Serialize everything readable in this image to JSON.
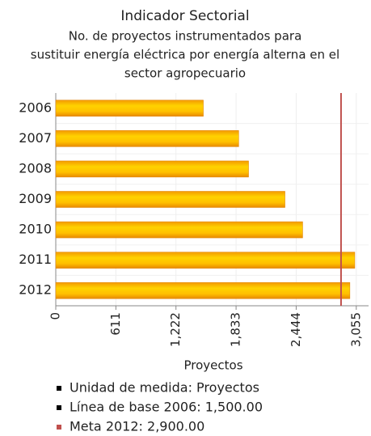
{
  "chart_data": {
    "type": "barh",
    "title": "Indicador Sectorial",
    "subtitle": [
      "No. de proyectos instrumentados para",
      "sustituir energía eléctrica por energía alterna en el",
      "sector agropecuario"
    ],
    "categories": [
      "2006",
      "2007",
      "2008",
      "2009",
      "2010",
      "2011",
      "2012"
    ],
    "values": [
      1500,
      1860,
      1960,
      2330,
      2510,
      3040,
      2990
    ],
    "color": "#ffb400",
    "xlabel": "Proyectos",
    "xlim": [
      0,
      3180
    ],
    "xticks": [
      0,
      611,
      {
        "value": 1222,
        "label": "1,222"
      },
      {
        "value": 1833,
        "label": "1,833"
      },
      {
        "value": 2444,
        "label": "2,444"
      },
      {
        "value": 3055,
        "label": "3,055"
      }
    ],
    "grid": true,
    "target": 2900,
    "target_color": "#c0504d",
    "legend": [
      {
        "label": "Unidad de medida: Proyectos",
        "color": "#000000"
      },
      {
        "label": "Línea de base 2006: 1,500.00",
        "color": "#000000"
      },
      {
        "label": "Meta 2012: 2,900.00",
        "color": "#c0504d"
      }
    ]
  }
}
